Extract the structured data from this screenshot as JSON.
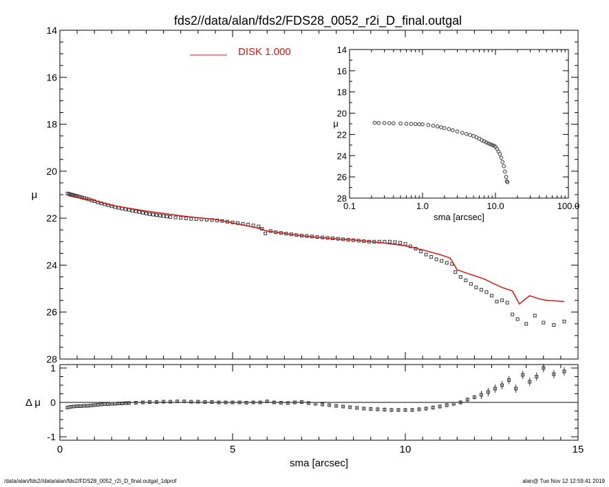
{
  "title": "fds2//data/alan/fds2/FDS28_0052_r2i_D_final.outgal",
  "footer_left": "/data/alan/fds2//data/alan/fds2/FDS28_0052_r2i_D_final.outgal_1dprof",
  "footer_right": "alan@  Tue Nov 12 12:59:41 2019",
  "colors": {
    "data": "#333333",
    "model": "#dd1111",
    "axis": "#000000"
  },
  "chart_data": [
    {
      "panel": "main",
      "type": "scatter",
      "ylabel": "μ",
      "xlim": [
        0,
        15
      ],
      "ylim": [
        28,
        14
      ],
      "y_inverted": true,
      "yticks": [
        14,
        16,
        18,
        20,
        22,
        24,
        26,
        28
      ],
      "legend": {
        "label": "DISK  1.000",
        "color": "#dd1111",
        "position": "top-center"
      },
      "series": [
        {
          "marker": "square",
          "x": [
            0.22,
            0.27,
            0.32,
            0.37,
            0.42,
            0.47,
            0.52,
            0.58,
            0.64,
            0.7,
            0.77,
            0.84,
            0.92,
            1.0,
            1.1,
            1.2,
            1.3,
            1.4,
            1.5,
            1.6,
            1.7,
            1.8,
            1.9,
            2.0,
            2.1,
            2.2,
            2.3,
            2.4,
            2.5,
            2.6,
            2.7,
            2.8,
            2.9,
            3.0,
            3.1,
            3.2,
            3.35,
            3.5,
            3.65,
            3.8,
            3.95,
            4.1,
            4.25,
            4.4,
            4.55,
            4.7,
            4.85,
            5.0,
            5.15,
            5.3,
            5.45,
            5.6,
            5.75,
            5.85,
            5.95,
            6.1,
            6.25,
            6.4,
            6.55,
            6.7,
            6.85,
            7.0,
            7.15,
            7.3,
            7.45,
            7.6,
            7.75,
            7.9,
            8.05,
            8.2,
            8.35,
            8.5,
            8.65,
            8.8,
            8.95,
            9.1,
            9.25,
            9.4,
            9.55,
            9.7,
            9.85,
            10.0,
            10.15,
            10.3,
            10.45,
            10.6,
            10.75,
            10.9,
            11.05,
            11.2,
            11.35,
            11.45,
            11.6,
            11.75,
            11.9,
            12.05,
            12.2,
            12.35,
            12.5,
            12.65,
            12.8,
            12.95,
            13.1,
            13.25,
            13.5,
            13.75,
            14.0,
            14.3,
            14.6
          ],
          "y": [
            20.95,
            20.97,
            20.99,
            21.01,
            21.03,
            21.05,
            21.07,
            21.09,
            21.12,
            21.14,
            21.17,
            21.2,
            21.24,
            21.28,
            21.33,
            21.37,
            21.41,
            21.45,
            21.49,
            21.53,
            21.56,
            21.59,
            21.62,
            21.65,
            21.68,
            21.71,
            21.74,
            21.77,
            21.8,
            21.83,
            21.85,
            21.87,
            21.89,
            21.91,
            21.93,
            21.95,
            21.97,
            21.99,
            22.01,
            22.03,
            22.04,
            22.05,
            22.07,
            22.08,
            22.1,
            22.12,
            22.15,
            22.18,
            22.21,
            22.24,
            22.27,
            22.31,
            22.35,
            22.45,
            22.65,
            22.55,
            22.6,
            22.63,
            22.66,
            22.69,
            22.72,
            22.74,
            22.76,
            22.78,
            22.8,
            22.82,
            22.84,
            22.86,
            22.88,
            22.9,
            22.92,
            22.94,
            22.96,
            22.98,
            23.0,
            23.0,
            23.0,
            23.0,
            23.0,
            23.02,
            23.05,
            23.1,
            23.2,
            23.3,
            23.42,
            23.55,
            23.65,
            23.75,
            23.82,
            23.9,
            23.95,
            24.3,
            24.5,
            24.65,
            24.8,
            24.95,
            25.05,
            25.15,
            25.3,
            25.55,
            25.5,
            25.6,
            26.1,
            26.3,
            26.5,
            26.15,
            26.45,
            26.55,
            26.4
          ]
        },
        {
          "name": "DISK  1.000",
          "type": "line",
          "x": [
            0.25,
            0.5,
            1.0,
            1.5,
            2.0,
            2.5,
            3.0,
            3.5,
            4.0,
            4.5,
            5.0,
            5.5,
            5.8,
            6.0,
            6.5,
            7.0,
            7.5,
            8.0,
            8.5,
            9.0,
            9.5,
            10.0,
            10.5,
            11.0,
            11.3,
            11.5,
            11.8,
            12.0,
            12.3,
            12.5,
            12.8,
            13.1,
            13.3,
            13.6,
            13.9,
            14.1,
            14.3,
            14.6
          ],
          "y": [
            21.05,
            21.12,
            21.25,
            21.45,
            21.58,
            21.7,
            21.8,
            21.9,
            21.98,
            22.05,
            22.2,
            22.35,
            22.45,
            22.55,
            22.65,
            22.75,
            22.82,
            22.88,
            22.93,
            23.0,
            23.08,
            23.18,
            23.35,
            23.55,
            23.7,
            24.2,
            24.35,
            24.45,
            24.6,
            24.75,
            24.95,
            25.1,
            25.65,
            25.3,
            25.45,
            25.5,
            25.52,
            25.55
          ]
        }
      ]
    },
    {
      "panel": "residual",
      "type": "scatter",
      "xlabel": "sma [arcsec]",
      "ylabel": "Δ μ",
      "xlim": [
        0,
        15
      ],
      "ylim": [
        -1.1,
        1.1
      ],
      "xticks": [
        0,
        5,
        10,
        15
      ],
      "yticks": [
        -1,
        0,
        1
      ],
      "zero_line": true,
      "series": [
        {
          "marker": "square-errorbar",
          "x": [
            0.22,
            0.3,
            0.4,
            0.5,
            0.6,
            0.7,
            0.8,
            0.9,
            1.0,
            1.1,
            1.2,
            1.3,
            1.4,
            1.5,
            1.6,
            1.7,
            1.8,
            1.9,
            2.0,
            2.2,
            2.4,
            2.6,
            2.8,
            3.0,
            3.2,
            3.4,
            3.6,
            3.8,
            4.0,
            4.2,
            4.4,
            4.6,
            4.8,
            5.0,
            5.2,
            5.4,
            5.6,
            5.8,
            6.0,
            6.2,
            6.4,
            6.6,
            6.8,
            7.0,
            7.2,
            7.4,
            7.6,
            7.8,
            8.0,
            8.2,
            8.4,
            8.6,
            8.8,
            9.0,
            9.2,
            9.4,
            9.6,
            9.8,
            10.0,
            10.2,
            10.4,
            10.6,
            10.8,
            11.0,
            11.2,
            11.4,
            11.6,
            11.8,
            12.0,
            12.2,
            12.4,
            12.6,
            12.8,
            13.0,
            13.2,
            13.4,
            13.6,
            13.8,
            14.0,
            14.3,
            14.6
          ],
          "y": [
            -0.15,
            -0.13,
            -0.12,
            -0.11,
            -0.11,
            -0.1,
            -0.1,
            -0.09,
            -0.08,
            -0.07,
            -0.06,
            -0.05,
            -0.05,
            -0.04,
            -0.04,
            -0.03,
            -0.03,
            -0.02,
            -0.02,
            -0.01,
            0.0,
            0.01,
            0.01,
            0.02,
            0.02,
            0.03,
            0.03,
            0.02,
            0.02,
            0.01,
            0.01,
            0.0,
            0.0,
            0.0,
            0.0,
            -0.01,
            0.0,
            0.0,
            0.03,
            0.0,
            -0.01,
            -0.02,
            0.0,
            0.01,
            -0.02,
            -0.04,
            -0.06,
            -0.08,
            -0.1,
            -0.12,
            -0.14,
            -0.16,
            -0.18,
            -0.19,
            -0.2,
            -0.21,
            -0.22,
            -0.22,
            -0.22,
            -0.22,
            -0.2,
            -0.18,
            -0.15,
            -0.12,
            -0.08,
            -0.04,
            0.0,
            0.08,
            0.15,
            0.22,
            0.3,
            0.4,
            0.5,
            0.65,
            0.4,
            0.8,
            0.6,
            0.75,
            1.0,
            0.82,
            0.9
          ]
        }
      ]
    },
    {
      "panel": "inset",
      "type": "scatter",
      "xlabel": "sma [arcsec]",
      "ylabel": "μ",
      "x_scale": "log",
      "xlim": [
        0.1,
        100
      ],
      "xtick_labels": [
        "0.1",
        "1.0",
        "10.0",
        "100.0"
      ],
      "ylim": [
        28,
        14
      ],
      "y_inverted": true,
      "yticks": [
        14,
        16,
        18,
        20,
        22,
        24,
        26,
        28
      ],
      "series": [
        {
          "marker": "circle",
          "x": [
            0.22,
            0.25,
            0.3,
            0.35,
            0.4,
            0.5,
            0.6,
            0.7,
            0.8,
            0.9,
            1.0,
            1.2,
            1.4,
            1.6,
            1.8,
            2.0,
            2.3,
            2.6,
            3.0,
            3.5,
            4.0,
            4.5,
            5.0,
            5.5,
            6.0,
            6.5,
            7.0,
            7.5,
            8.0,
            8.5,
            9.0,
            9.5,
            10.0,
            10.5,
            11.0,
            11.5,
            12.0,
            12.5,
            13.0,
            13.5,
            14.0,
            14.3,
            14.6
          ],
          "y": [
            20.9,
            20.92,
            20.93,
            20.94,
            20.95,
            20.97,
            20.99,
            21.0,
            21.02,
            21.04,
            21.05,
            21.1,
            21.18,
            21.25,
            21.33,
            21.4,
            21.5,
            21.6,
            21.72,
            21.85,
            21.95,
            22.05,
            22.15,
            22.27,
            22.4,
            22.55,
            22.65,
            22.75,
            22.85,
            22.92,
            23.0,
            23.05,
            23.15,
            23.35,
            23.6,
            23.85,
            24.2,
            24.6,
            25.0,
            25.5,
            26.0,
            26.4,
            26.5
          ]
        }
      ]
    }
  ]
}
